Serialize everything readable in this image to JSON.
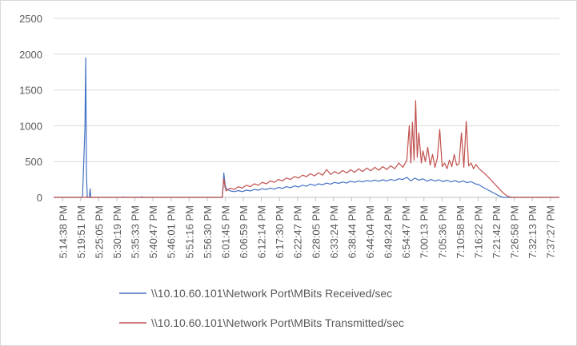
{
  "chart_data": {
    "type": "line",
    "ylim": [
      0,
      2500
    ],
    "yticks": [
      0,
      500,
      1000,
      1500,
      2000,
      2500
    ],
    "grid": true,
    "legend_position": "bottom",
    "x_labels": [
      "5:14:38 PM",
      "5:19:51 PM",
      "5:25:05 PM",
      "5:30:19 PM",
      "5:35:33 PM",
      "5:40:47 PM",
      "5:46:01 PM",
      "5:51:16 PM",
      "5:56:30 PM",
      "6:01:45 PM",
      "6:06:59 PM",
      "6:12:14 PM",
      "6:17:30 PM",
      "6:22:47 PM",
      "6:28:05 PM",
      "6:33:24 PM",
      "6:38:44 PM",
      "6:44:04 PM",
      "6:49:24 PM",
      "6:54:47 PM",
      "7:00:13 PM",
      "7:05:36 PM",
      "7:10:58 PM",
      "7:16:22 PM",
      "7:21:42 PM",
      "7:26:58 PM",
      "7:32:13 PM",
      "7:37:27 PM"
    ],
    "series": [
      {
        "name": "\\\\10.10.60.101\\Network Port\\MBits Received/sec",
        "color": "#4472c4",
        "points": [
          [
            0,
            0
          ],
          [
            3.6,
            0
          ],
          [
            3.9,
            950
          ],
          [
            4.0,
            1950
          ],
          [
            4.1,
            300
          ],
          [
            4.2,
            0
          ],
          [
            4.45,
            0
          ],
          [
            4.55,
            120
          ],
          [
            4.65,
            0
          ],
          [
            8.6,
            0
          ],
          [
            8.7,
            8
          ],
          [
            8.8,
            0
          ],
          [
            10.9,
            0
          ],
          [
            11.0,
            10
          ],
          [
            11.05,
            0
          ],
          [
            21.0,
            0
          ],
          [
            21.1,
            120
          ],
          [
            21.2,
            340
          ],
          [
            21.35,
            180
          ],
          [
            21.5,
            120
          ],
          [
            22.0,
            90
          ],
          [
            22.5,
            80
          ],
          [
            23.0,
            95
          ],
          [
            23.5,
            80
          ],
          [
            24.0,
            100
          ],
          [
            24.5,
            90
          ],
          [
            25.0,
            110
          ],
          [
            25.5,
            100
          ],
          [
            26.0,
            120
          ],
          [
            26.5,
            110
          ],
          [
            27.0,
            130
          ],
          [
            27.5,
            115
          ],
          [
            28.0,
            140
          ],
          [
            28.5,
            125
          ],
          [
            29.0,
            150
          ],
          [
            29.5,
            135
          ],
          [
            30.0,
            160
          ],
          [
            30.5,
            145
          ],
          [
            31.0,
            170
          ],
          [
            31.5,
            155
          ],
          [
            32.0,
            185
          ],
          [
            32.5,
            165
          ],
          [
            33.0,
            190
          ],
          [
            33.5,
            175
          ],
          [
            34.0,
            200
          ],
          [
            34.5,
            185
          ],
          [
            35.0,
            210
          ],
          [
            35.5,
            195
          ],
          [
            36.0,
            215
          ],
          [
            36.5,
            200
          ],
          [
            37.0,
            225
          ],
          [
            37.5,
            210
          ],
          [
            38.0,
            230
          ],
          [
            38.5,
            215
          ],
          [
            39.0,
            235
          ],
          [
            39.5,
            225
          ],
          [
            40.0,
            240
          ],
          [
            40.5,
            225
          ],
          [
            41.0,
            245
          ],
          [
            41.5,
            230
          ],
          [
            42.0,
            250
          ],
          [
            42.5,
            235
          ],
          [
            43.0,
            260
          ],
          [
            43.5,
            250
          ],
          [
            44.0,
            280
          ],
          [
            44.5,
            230
          ],
          [
            45.0,
            270
          ],
          [
            45.5,
            240
          ],
          [
            46.0,
            260
          ],
          [
            46.5,
            225
          ],
          [
            47.0,
            250
          ],
          [
            47.5,
            230
          ],
          [
            48.0,
            245
          ],
          [
            48.5,
            220
          ],
          [
            49.0,
            240
          ],
          [
            49.5,
            215
          ],
          [
            50.0,
            235
          ],
          [
            50.5,
            210
          ],
          [
            51.0,
            230
          ],
          [
            51.5,
            205
          ],
          [
            52.0,
            220
          ],
          [
            52.5,
            190
          ],
          [
            53.0,
            175
          ],
          [
            53.5,
            140
          ],
          [
            54.0,
            110
          ],
          [
            54.5,
            80
          ],
          [
            55.0,
            50
          ],
          [
            55.5,
            20
          ],
          [
            56.0,
            0
          ],
          [
            63.0,
            0
          ]
        ]
      },
      {
        "name": "\\\\10.10.60.101\\Network Port\\MBits Transmitted/sec",
        "color": "#c0504d",
        "points": [
          [
            0,
            0
          ],
          [
            4.0,
            0
          ],
          [
            4.1,
            10
          ],
          [
            4.2,
            0
          ],
          [
            21.0,
            0
          ],
          [
            21.1,
            150
          ],
          [
            21.2,
            260
          ],
          [
            21.35,
            140
          ],
          [
            21.5,
            90
          ],
          [
            22.0,
            130
          ],
          [
            22.5,
            110
          ],
          [
            23.0,
            150
          ],
          [
            23.5,
            130
          ],
          [
            24.0,
            170
          ],
          [
            24.5,
            150
          ],
          [
            25.0,
            190
          ],
          [
            25.5,
            170
          ],
          [
            26.0,
            210
          ],
          [
            26.5,
            190
          ],
          [
            27.0,
            230
          ],
          [
            27.5,
            210
          ],
          [
            28.0,
            250
          ],
          [
            28.5,
            230
          ],
          [
            29.0,
            270
          ],
          [
            29.5,
            250
          ],
          [
            30.0,
            290
          ],
          [
            30.5,
            270
          ],
          [
            31.0,
            310
          ],
          [
            31.5,
            290
          ],
          [
            32.0,
            330
          ],
          [
            32.5,
            300
          ],
          [
            33.0,
            345
          ],
          [
            33.5,
            310
          ],
          [
            34.0,
            390
          ],
          [
            34.5,
            320
          ],
          [
            35.0,
            360
          ],
          [
            35.5,
            330
          ],
          [
            36.0,
            375
          ],
          [
            36.5,
            340
          ],
          [
            37.0,
            385
          ],
          [
            37.5,
            350
          ],
          [
            38.0,
            400
          ],
          [
            38.5,
            360
          ],
          [
            39.0,
            410
          ],
          [
            39.5,
            370
          ],
          [
            40.0,
            420
          ],
          [
            40.5,
            380
          ],
          [
            41.0,
            430
          ],
          [
            41.5,
            390
          ],
          [
            42.0,
            440
          ],
          [
            42.5,
            400
          ],
          [
            43.0,
            480
          ],
          [
            43.5,
            420
          ],
          [
            44.0,
            520
          ],
          [
            44.3,
            1000
          ],
          [
            44.5,
            480
          ],
          [
            44.7,
            1050
          ],
          [
            44.9,
            520
          ],
          [
            45.1,
            1350
          ],
          [
            45.3,
            560
          ],
          [
            45.5,
            900
          ],
          [
            45.8,
            480
          ],
          [
            46.0,
            650
          ],
          [
            46.3,
            500
          ],
          [
            46.6,
            700
          ],
          [
            46.9,
            450
          ],
          [
            47.2,
            600
          ],
          [
            47.5,
            420
          ],
          [
            47.8,
            550
          ],
          [
            48.1,
            950
          ],
          [
            48.4,
            430
          ],
          [
            48.7,
            480
          ],
          [
            49.0,
            400
          ],
          [
            49.3,
            520
          ],
          [
            49.6,
            430
          ],
          [
            49.9,
            600
          ],
          [
            50.2,
            450
          ],
          [
            50.5,
            470
          ],
          [
            50.8,
            900
          ],
          [
            51.1,
            420
          ],
          [
            51.4,
            1060
          ],
          [
            51.7,
            440
          ],
          [
            52.0,
            480
          ],
          [
            52.3,
            400
          ],
          [
            52.6,
            460
          ],
          [
            53.0,
            400
          ],
          [
            53.5,
            350
          ],
          [
            54.0,
            300
          ],
          [
            54.5,
            240
          ],
          [
            55.0,
            180
          ],
          [
            55.5,
            120
          ],
          [
            56.0,
            60
          ],
          [
            56.5,
            20
          ],
          [
            57.0,
            0
          ],
          [
            63.0,
            0
          ]
        ]
      }
    ]
  }
}
